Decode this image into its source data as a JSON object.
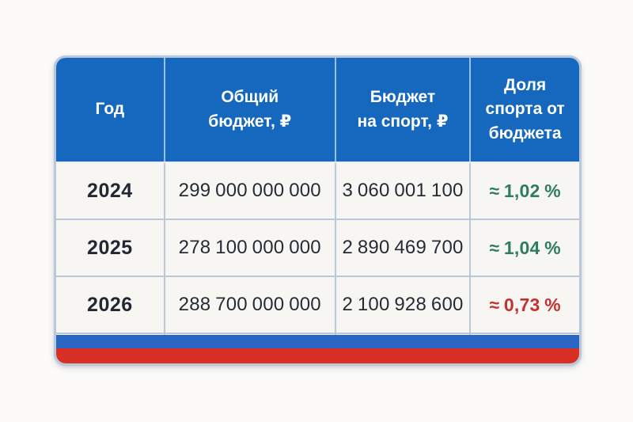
{
  "colors": {
    "header_blue": "#1568bd",
    "card_border": "#b9c9d9",
    "cell_background": "#f7f6f3",
    "divider": "#b9c7d7",
    "text_dark": "#262c36",
    "share_green": "#2e7d5e",
    "share_red": "#c43030",
    "flag_blue": "#2a67c5",
    "flag_red": "#d93026"
  },
  "table": {
    "columns": [
      {
        "label": "Год"
      },
      {
        "label": "Общий\nбюджет, ₽"
      },
      {
        "label": "Бюджет\nна спорт, ₽"
      },
      {
        "label": "Доля\nспорта от\nбюджета"
      }
    ],
    "rows": [
      {
        "year": "2024",
        "total_budget": "299 000 000 000",
        "sport_budget": "3 060 001 100",
        "share": "≈ 1,02 %",
        "share_color": "#2e7d5e"
      },
      {
        "year": "2025",
        "total_budget": "278 100 000 000",
        "sport_budget": "2 890 469 700",
        "share": "≈ 1,04 %",
        "share_color": "#2e7d5e"
      },
      {
        "year": "2026",
        "total_budget": "288 700 000 000",
        "sport_budget": "2 100 928 600",
        "share": "≈ 0,73 %",
        "share_color": "#c43030"
      }
    ]
  },
  "chart_data": {
    "type": "table",
    "title": "",
    "columns": [
      "Год",
      "Общий бюджет, ₽",
      "Бюджет на спорт, ₽",
      "Доля спорта от бюджета"
    ],
    "rows": [
      [
        "2024",
        299000000000,
        3060001100,
        "≈ 1,02 %"
      ],
      [
        "2025",
        278100000000,
        2890469700,
        "≈ 1,04 %"
      ],
      [
        "2026",
        288700000000,
        2100928600,
        "≈ 0,73 %"
      ]
    ]
  }
}
